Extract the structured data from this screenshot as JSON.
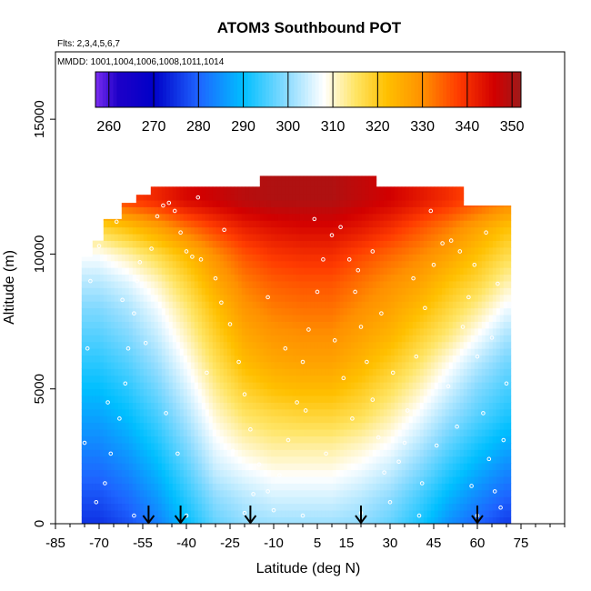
{
  "chart_data": {
    "type": "heatmap",
    "title": "ATOM3 Southbound POT",
    "annotations": [
      "Flts: 2,3,4,5,6,7",
      "MMDD: 1001,1004,1006,1008,1011,1014"
    ],
    "xlabel": "Latitude (deg N)",
    "ylabel": "Altitude (m)",
    "xlim": [
      -85,
      90
    ],
    "ylim": [
      0,
      17500
    ],
    "x_ticks": [
      -85,
      -70,
      -55,
      -40,
      -25,
      -10,
      5,
      15,
      30,
      45,
      60,
      75
    ],
    "x_tick_labels": [
      "-85",
      "-70",
      "-55",
      "-40",
      "-25",
      "-10",
      "5",
      "15",
      "30",
      "45",
      "60",
      "75"
    ],
    "y_ticks": [
      0,
      5000,
      10000,
      15000
    ],
    "y_tick_labels": [
      "0",
      "5000",
      "10000",
      "15000"
    ],
    "colorbar": {
      "min": 257,
      "max": 352,
      "ticks": [
        260,
        270,
        280,
        290,
        300,
        310,
        320,
        330,
        340,
        350
      ],
      "tick_labels": [
        "260",
        "270",
        "280",
        "290",
        "300",
        "310",
        "320",
        "330",
        "340",
        "350"
      ],
      "position": "top",
      "stops": [
        {
          "value": 257,
          "color": "#7a2cf0"
        },
        {
          "value": 262,
          "color": "#1e00c8"
        },
        {
          "value": 270,
          "color": "#0000c8"
        },
        {
          "value": 280,
          "color": "#1e64ff"
        },
        {
          "value": 290,
          "color": "#00bfff"
        },
        {
          "value": 300,
          "color": "#8fdcff"
        },
        {
          "value": 308,
          "color": "#ffffff"
        },
        {
          "value": 315,
          "color": "#ffe566"
        },
        {
          "value": 322,
          "color": "#ffc000"
        },
        {
          "value": 330,
          "color": "#ff9000"
        },
        {
          "value": 338,
          "color": "#ff3c00"
        },
        {
          "value": 346,
          "color": "#d20000"
        },
        {
          "value": 352,
          "color": "#9e1a1a"
        }
      ]
    },
    "potential_temperature_K": {
      "latitude": [
        -70,
        -60,
        -50,
        -40,
        -30,
        -20,
        -10,
        0,
        10,
        20,
        30,
        40,
        50,
        60,
        70
      ],
      "altitude": [
        0,
        1000,
        2000,
        3000,
        4000,
        5000,
        6000,
        7000,
        8000,
        9000,
        10000,
        11000,
        12000
      ],
      "values": [
        [
          275,
          278,
          283,
          290,
          297,
          300,
          301,
          301,
          301,
          300,
          297,
          292,
          285,
          280,
          276
        ],
        [
          278,
          281,
          286,
          293,
          300,
          303,
          305,
          305,
          305,
          303,
          300,
          295,
          289,
          284,
          280
        ],
        [
          281,
          284,
          289,
          296,
          304,
          307,
          309,
          309,
          309,
          307,
          304,
          299,
          293,
          288,
          284
        ],
        [
          284,
          287,
          292,
          299,
          307,
          311,
          313,
          313,
          313,
          311,
          308,
          303,
          297,
          292,
          288
        ],
        [
          287,
          290,
          295,
          302,
          310,
          315,
          317,
          318,
          318,
          316,
          312,
          307,
          301,
          296,
          292
        ],
        [
          290,
          293,
          298,
          305,
          313,
          319,
          322,
          323,
          323,
          320,
          316,
          311,
          305,
          299,
          295
        ],
        [
          293,
          296,
          301,
          308,
          316,
          323,
          326,
          327,
          327,
          324,
          320,
          315,
          309,
          303,
          298
        ],
        [
          296,
          299,
          304,
          311,
          319,
          326,
          329,
          330,
          330,
          327,
          324,
          319,
          314,
          308,
          302
        ],
        [
          299,
          302,
          307,
          314,
          322,
          329,
          332,
          333,
          333,
          330,
          327,
          323,
          318,
          313,
          307
        ],
        [
          303,
          306,
          311,
          318,
          326,
          332,
          335,
          336,
          336,
          333,
          330,
          327,
          322,
          318,
          312
        ],
        [
          308,
          312,
          317,
          323,
          330,
          336,
          339,
          340,
          340,
          337,
          334,
          331,
          327,
          322,
          317
        ],
        [
          318,
          322,
          327,
          333,
          338,
          342,
          344,
          345,
          345,
          343,
          340,
          336,
          332,
          327,
          322
        ],
        [
          335,
          338,
          341,
          345,
          347,
          349,
          350,
          350,
          350,
          348,
          346,
          343,
          340,
          336,
          332
        ]
      ]
    },
    "flight_track_points": [
      [
        -71,
        800
      ],
      [
        -68,
        1500
      ],
      [
        -66,
        2600
      ],
      [
        -63,
        3900
      ],
      [
        -61,
        5200
      ],
      [
        -60,
        6500
      ],
      [
        -58,
        7800
      ],
      [
        -57,
        9000
      ],
      [
        -56,
        9700
      ],
      [
        -52,
        10200
      ],
      [
        -50,
        11400
      ],
      [
        -48,
        11800
      ],
      [
        -46,
        11900
      ],
      [
        -44,
        11600
      ],
      [
        -42,
        10800
      ],
      [
        -40,
        10100
      ],
      [
        -38,
        9900
      ],
      [
        -35,
        9800
      ],
      [
        -30,
        9100
      ],
      [
        -28,
        8200
      ],
      [
        -25,
        7400
      ],
      [
        -22,
        6000
      ],
      [
        -20,
        4800
      ],
      [
        -18,
        3500
      ],
      [
        -15,
        2200
      ],
      [
        -12,
        1200
      ],
      [
        -10,
        500
      ],
      [
        -8,
        1800
      ],
      [
        -5,
        3100
      ],
      [
        -2,
        4500
      ],
      [
        0,
        6000
      ],
      [
        2,
        7200
      ],
      [
        5,
        8600
      ],
      [
        7,
        9800
      ],
      [
        10,
        10700
      ],
      [
        13,
        11000
      ],
      [
        16,
        9800
      ],
      [
        18,
        8600
      ],
      [
        20,
        7300
      ],
      [
        22,
        6000
      ],
      [
        24,
        4600
      ],
      [
        26,
        3200
      ],
      [
        28,
        1900
      ],
      [
        30,
        800
      ],
      [
        33,
        2300
      ],
      [
        36,
        4200
      ],
      [
        39,
        6200
      ],
      [
        42,
        8000
      ],
      [
        45,
        9600
      ],
      [
        48,
        10400
      ],
      [
        51,
        10500
      ],
      [
        54,
        10100
      ],
      [
        57,
        8400
      ],
      [
        60,
        6200
      ],
      [
        62,
        4100
      ],
      [
        64,
        2400
      ],
      [
        66,
        1200
      ],
      [
        68,
        600
      ],
      [
        -75,
        3000
      ],
      [
        -74,
        6500
      ],
      [
        -73,
        9000
      ],
      [
        -70,
        10300
      ],
      [
        -64,
        11200
      ],
      [
        -36,
        12100
      ],
      [
        -27,
        10900
      ],
      [
        -12,
        8400
      ],
      [
        -6,
        6500
      ],
      [
        1,
        4200
      ],
      [
        8,
        2600
      ],
      [
        14,
        5400
      ],
      [
        19,
        9400
      ],
      [
        27,
        7800
      ],
      [
        31,
        5600
      ],
      [
        35,
        3000
      ],
      [
        41,
        1500
      ],
      [
        46,
        2900
      ],
      [
        50,
        5100
      ],
      [
        55,
        7300
      ],
      [
        59,
        9600
      ],
      [
        63,
        10800
      ],
      [
        67,
        8900
      ],
      [
        70,
        5200
      ],
      [
        -67,
        4500
      ],
      [
        -62,
        8300
      ],
      [
        -54,
        6700
      ],
      [
        -47,
        4100
      ],
      [
        -43,
        2600
      ],
      [
        -33,
        5600
      ],
      [
        -24,
        2700
      ],
      [
        -17,
        1100
      ],
      [
        4,
        11300
      ],
      [
        11,
        6800
      ],
      [
        17,
        3900
      ],
      [
        24,
        10100
      ],
      [
        38,
        9100
      ],
      [
        44,
        11600
      ],
      [
        53,
        3600
      ],
      [
        58,
        1400
      ],
      [
        65,
        6900
      ],
      [
        69,
        3100
      ],
      [
        -58,
        300
      ],
      [
        -40,
        300
      ],
      [
        -20,
        400
      ],
      [
        0,
        300
      ],
      [
        20,
        400
      ],
      [
        40,
        300
      ],
      [
        60,
        300
      ]
    ],
    "dive_markers_latitude": [
      -53,
      -42,
      -18,
      20,
      60
    ]
  }
}
